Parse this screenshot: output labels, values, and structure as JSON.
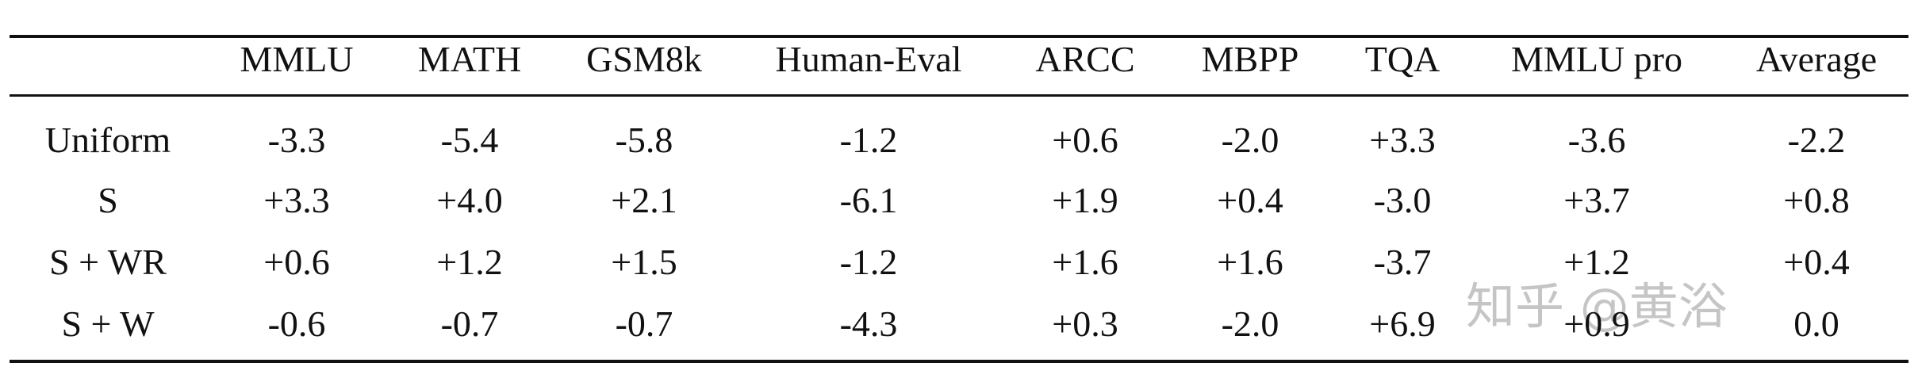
{
  "table": {
    "columns": [
      "MMLU",
      "MATH",
      "GSM8k",
      "Human-Eval",
      "ARCC",
      "MBPP",
      "TQA",
      "MMLU pro",
      "Average"
    ],
    "rows": [
      {
        "label": "Uniform",
        "values": [
          "-3.3",
          "-5.4",
          "-5.8",
          "-1.2",
          "+0.6",
          "-2.0",
          "+3.3",
          "-3.6",
          "-2.2"
        ]
      },
      {
        "label": "S",
        "values": [
          "+3.3",
          "+4.0",
          "+2.1",
          "-6.1",
          "+1.9",
          "+0.4",
          "-3.0",
          "+3.7",
          "+0.8"
        ]
      },
      {
        "label": "S + WR",
        "values": [
          "+0.6",
          "+1.2",
          "+1.5",
          "-1.2",
          "+1.6",
          "+1.6",
          "-3.7",
          "+1.2",
          "+0.4"
        ]
      },
      {
        "label": "S + W",
        "values": [
          "-0.6",
          "-0.7",
          "-0.7",
          "-4.3",
          "+0.3",
          "-2.0",
          "+6.9",
          "+0.9",
          "0.0"
        ]
      }
    ]
  },
  "watermark": "知乎 @黄浴"
}
